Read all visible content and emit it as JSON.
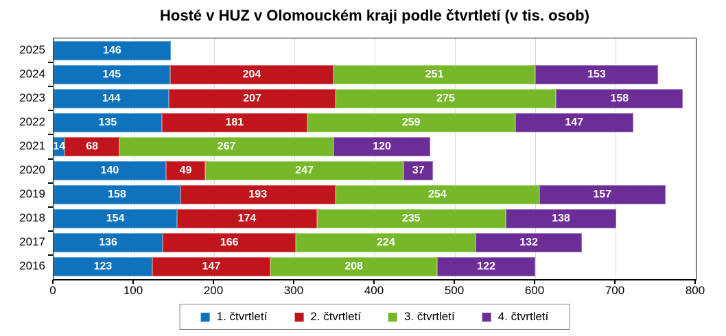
{
  "title": "Hosté v HUZ v Olomouckém kraji podle čtvrtletí (v tis. osob)",
  "chart_data": {
    "type": "bar",
    "orientation": "horizontal-stacked",
    "title": "Hosté v HUZ v Olomouckém kraji podle čtvrtletí (v tis. osob)",
    "xlabel": "",
    "ylabel": "",
    "xlim": [
      0,
      800
    ],
    "xticks": [
      0,
      100,
      200,
      300,
      400,
      500,
      600,
      700,
      800
    ],
    "grid": true,
    "legend_position": "bottom",
    "categories": [
      "2025",
      "2024",
      "2023",
      "2022",
      "2021",
      "2020",
      "2019",
      "2018",
      "2017",
      "2016"
    ],
    "series": [
      {
        "name": "1. čtvrtletí",
        "color": "#0E72BC",
        "values": [
          146,
          145,
          144,
          135,
          14,
          140,
          158,
          154,
          136,
          123
        ]
      },
      {
        "name": "2. čtvrtletí",
        "color": "#C0151C",
        "values": [
          null,
          204,
          207,
          181,
          68,
          49,
          193,
          174,
          166,
          147
        ]
      },
      {
        "name": "3. čtvrtletí",
        "color": "#76B82A",
        "values": [
          null,
          251,
          275,
          259,
          267,
          247,
          254,
          235,
          224,
          208
        ]
      },
      {
        "name": "4. čtvrtletí",
        "color": "#6D2D96",
        "values": [
          null,
          153,
          158,
          147,
          120,
          37,
          157,
          138,
          132,
          122
        ]
      }
    ]
  }
}
